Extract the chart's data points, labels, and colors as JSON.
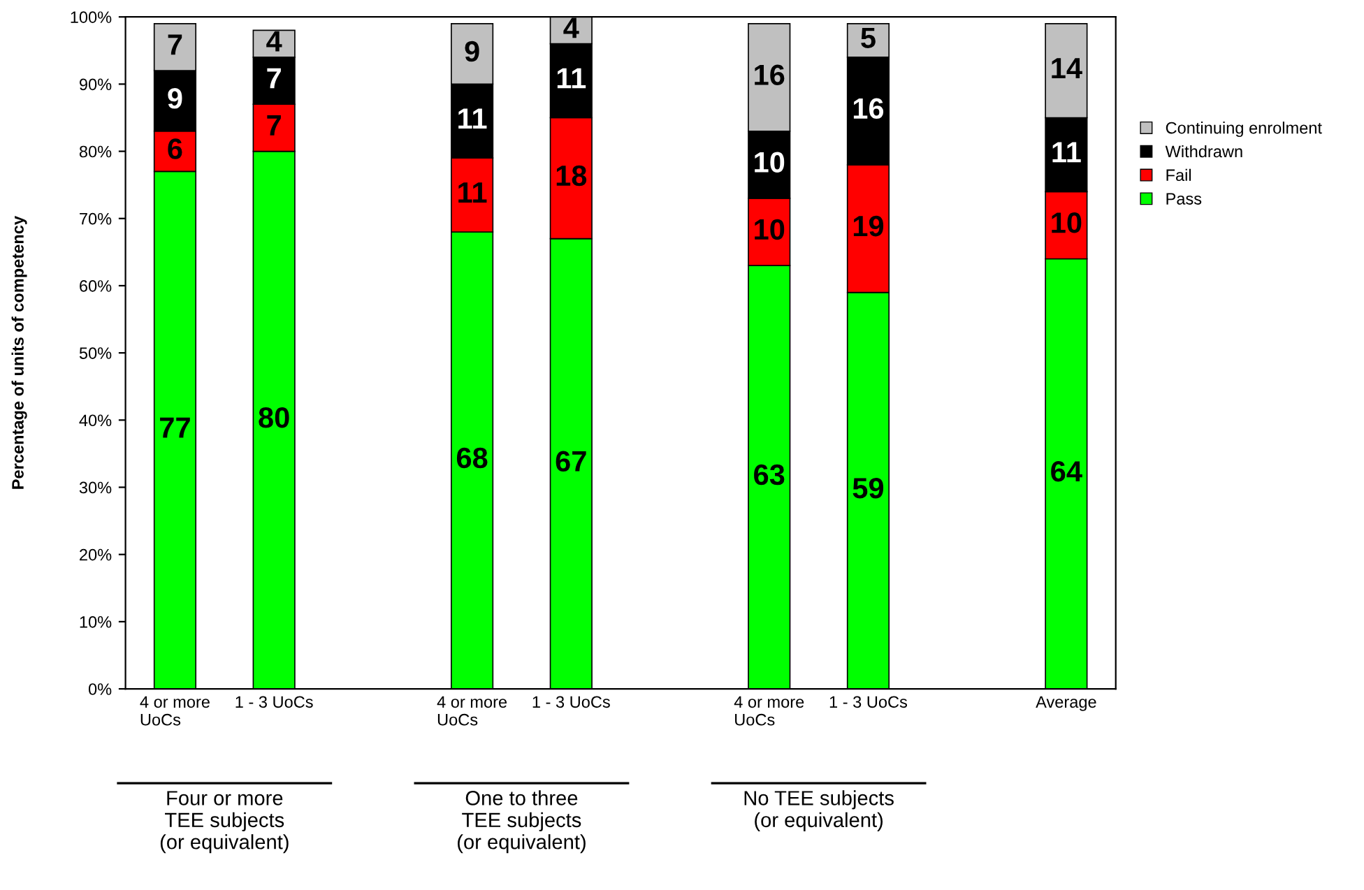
{
  "chart_data": {
    "type": "bar",
    "stacked": true,
    "ylabel": "Percentage of units of competency",
    "categories": [
      "4 or more\nUoCs",
      "1 - 3 UoCs",
      null,
      "4 or more\nUoCs",
      "1 - 3 UoCs",
      null,
      "4 or more\nUoCs",
      "1 - 3 UoCs",
      null,
      "Average"
    ],
    "series": [
      {
        "name": "Pass",
        "color": "#00ff00",
        "values": [
          77,
          80,
          null,
          68,
          67,
          null,
          63,
          59,
          null,
          64
        ]
      },
      {
        "name": "Fail",
        "color": "#ff0000",
        "values": [
          6,
          7,
          null,
          11,
          18,
          null,
          10,
          19,
          null,
          10
        ]
      },
      {
        "name": "Withdrawn",
        "color": "#000000",
        "values": [
          9,
          7,
          null,
          11,
          11,
          null,
          10,
          16,
          null,
          11
        ]
      },
      {
        "name": "Continuing enrolment",
        "color": "#c0c0c0",
        "values": [
          7,
          4,
          null,
          9,
          4,
          null,
          16,
          5,
          null,
          14
        ]
      }
    ],
    "data_labels": true,
    "ylim": [
      0,
      100
    ],
    "yticks": [
      {
        "value": 0,
        "label": "0%"
      },
      {
        "value": 10,
        "label": "10%"
      },
      {
        "value": 20,
        "label": "20%"
      },
      {
        "value": 30,
        "label": "30%"
      },
      {
        "value": 40,
        "label": "40%"
      },
      {
        "value": 50,
        "label": "50%"
      },
      {
        "value": 60,
        "label": "60%"
      },
      {
        "value": 70,
        "label": "70%"
      },
      {
        "value": 80,
        "label": "80%"
      },
      {
        "value": 90,
        "label": "90%"
      },
      {
        "value": 100,
        "label": "100%"
      }
    ],
    "grid": false,
    "legend": "right",
    "annotations": [
      "Four or more\nTEE subjects\n(or equivalent)",
      "One to three\nTEE subjects\n(or equivalent)",
      "No TEE subjects\n(or equivalent)"
    ]
  }
}
